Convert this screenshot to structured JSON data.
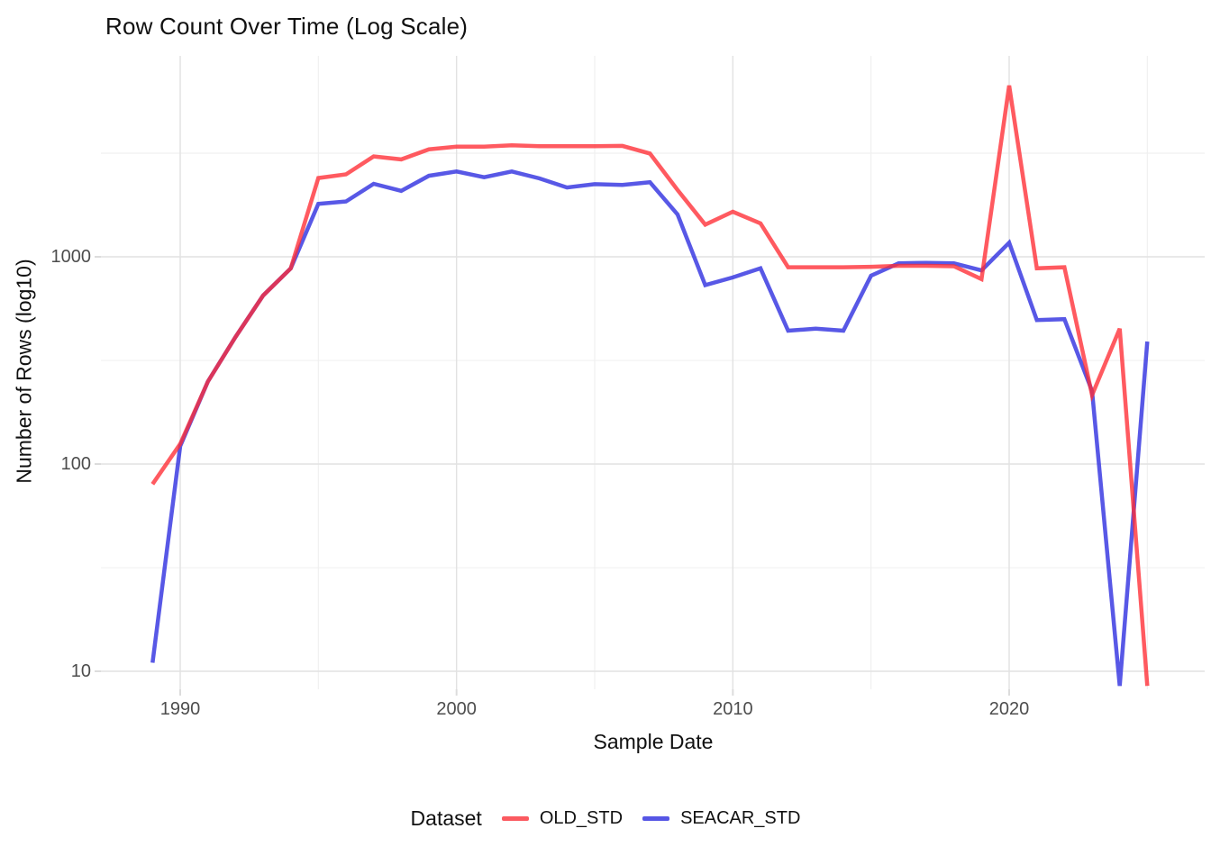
{
  "title": "Row Count Over Time (Log Scale)",
  "x_axis": {
    "label": "Sample Date",
    "ticks": [
      {
        "label": "1990",
        "year": 1990
      },
      {
        "label": "2000",
        "year": 2000
      },
      {
        "label": "2010",
        "year": 2010
      },
      {
        "label": "2020",
        "year": 2020
      }
    ]
  },
  "y_axis": {
    "label": "Number of Rows (log10)",
    "ticks": [
      {
        "label": "10",
        "value": 10
      },
      {
        "label": "100",
        "value": 100
      },
      {
        "label": "1000",
        "value": 1000
      }
    ]
  },
  "legend": {
    "title": "Dataset",
    "items": [
      {
        "label": "OLD_STD",
        "color": "#FB5A60"
      },
      {
        "label": "SEACAR_STD",
        "color": "#5656E5"
      }
    ]
  },
  "colors": {
    "old_std_stroke": "#FF2B33",
    "old_std_opacity": 0.78,
    "seacar_std_stroke": "#3333E0",
    "seacar_std_opacity": 0.82,
    "grid_major": "#E2E2E2",
    "grid_minor": "#F0F0F0",
    "tick_mark": "#DCDCDC"
  },
  "chart_data": {
    "type": "line",
    "yscale": "log10",
    "xlabel": "Sample Date",
    "ylabel": "Number of Rows (log10)",
    "xlim": [
      1988.5,
      2026
    ],
    "ylim": [
      8,
      7000
    ],
    "legend_position": "bottom",
    "grid": true,
    "x_major_gridlines": [
      1990,
      2000,
      2010,
      2020
    ],
    "x_minor_gridlines": [
      1995,
      2005,
      2015,
      2025
    ],
    "y_major_gridlines": [
      10,
      100,
      1000
    ],
    "y_minor_gridlines": [
      31.6,
      316,
      3162
    ],
    "x": [
      1989,
      1990,
      1991,
      1992,
      1993,
      1994,
      1995,
      1996,
      1997,
      1998,
      1999,
      2000,
      2001,
      2002,
      2003,
      2004,
      2005,
      2006,
      2007,
      2008,
      2009,
      2010,
      2011,
      2012,
      2013,
      2014,
      2015,
      2016,
      2017,
      2018,
      2019,
      2020,
      2021,
      2022,
      2023,
      2024,
      2025
    ],
    "series": [
      {
        "name": "OLD_STD",
        "values": [
          80,
          125,
          250,
          410,
          650,
          880,
          2400,
          2500,
          3050,
          2950,
          3300,
          3400,
          3400,
          3450,
          3420,
          3420,
          3420,
          3430,
          3150,
          2100,
          1430,
          1650,
          1450,
          890,
          890,
          890,
          895,
          905,
          905,
          900,
          780,
          6700,
          880,
          890,
          215,
          450,
          8.5
        ]
      },
      {
        "name": "SEACAR_STD",
        "values": [
          11,
          122,
          250,
          410,
          650,
          880,
          1800,
          1850,
          2250,
          2080,
          2460,
          2580,
          2420,
          2580,
          2390,
          2160,
          2240,
          2220,
          2290,
          1600,
          730,
          795,
          880,
          440,
          450,
          440,
          810,
          930,
          935,
          930,
          860,
          1170,
          495,
          500,
          225,
          8.5,
          390
        ]
      }
    ]
  }
}
